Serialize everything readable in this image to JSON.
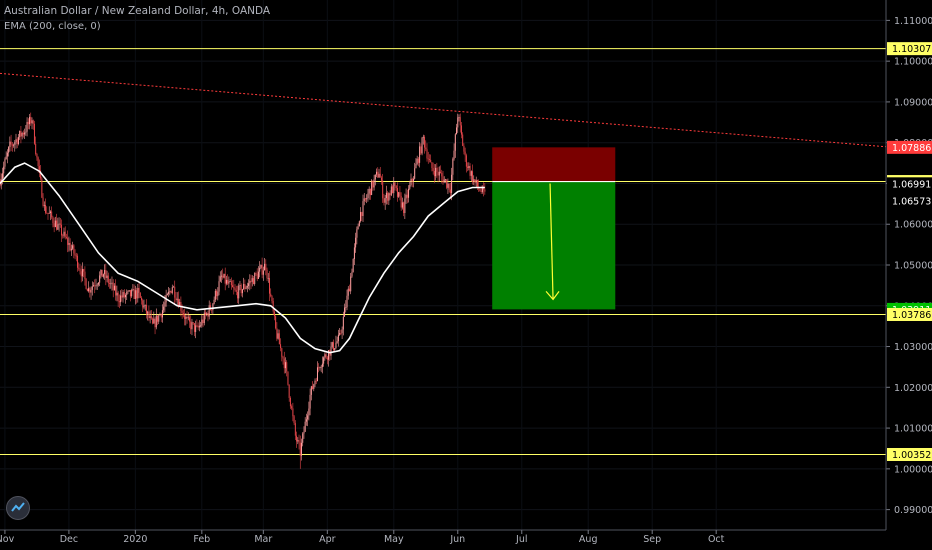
{
  "header": {
    "symbol_line": "Australian Dollar / New Zealand Dollar, 4h, OANDA",
    "indicator_line": "EMA (200, close, 0)"
  },
  "colors": {
    "background": "#000000",
    "candle_up": "#ff9e9e",
    "candle_down": "#e8474b",
    "ema": "#ffffff",
    "level_line": "#ffff66",
    "trendline": "#ff3b3b",
    "stop_zone": "#7a0000",
    "target_zone": "#008000",
    "arrow": "#ffff33",
    "axis_text": "#b2b5be",
    "price_badge_red": "#ff3b3b",
    "price_badge_green": "#00c000"
  },
  "logo_icon": "tradingview-logo-icon",
  "chart_data": {
    "type": "candlestick",
    "title": "Australian Dollar / New Zealand Dollar, 4h, OANDA",
    "ylim": [
      0.985,
      1.115
    ],
    "y_ticks": [
      1.11,
      1.1,
      1.09,
      1.08,
      1.07,
      1.06,
      1.05,
      1.04,
      1.03,
      1.02,
      1.01,
      1.0,
      0.99
    ],
    "y_tick_labels": [
      "1.11000",
      "1.10000",
      "1.09000",
      "1.08000",
      "1.07000",
      "1.06000",
      "1.05000",
      "1.04000",
      "1.03000",
      "1.02000",
      "1.01000",
      "1.00000",
      "0.99000"
    ],
    "x_index_range": [
      0,
      360
    ],
    "x_ticks": [
      {
        "label": "Nov",
        "index": 2
      },
      {
        "label": "Dec",
        "index": 28
      },
      {
        "label": "2020",
        "index": 55
      },
      {
        "label": "Feb",
        "index": 82
      },
      {
        "label": "Mar",
        "index": 107
      },
      {
        "label": "Apr",
        "index": 133
      },
      {
        "label": "May",
        "index": 160
      },
      {
        "label": "Jun",
        "index": 186
      },
      {
        "label": "Jul",
        "index": 212
      },
      {
        "label": "Aug",
        "index": 239
      },
      {
        "label": "Sep",
        "index": 265
      },
      {
        "label": "Oct",
        "index": 291
      }
    ],
    "price_anchors": [
      [
        0,
        1.071
      ],
      [
        4,
        1.079
      ],
      [
        10,
        1.083
      ],
      [
        13,
        1.086
      ],
      [
        15,
        1.076
      ],
      [
        18,
        1.064
      ],
      [
        24,
        1.059
      ],
      [
        30,
        1.053
      ],
      [
        36,
        1.044
      ],
      [
        42,
        1.048
      ],
      [
        48,
        1.042
      ],
      [
        56,
        1.043
      ],
      [
        62,
        1.035
      ],
      [
        66,
        1.039
      ],
      [
        70,
        1.045
      ],
      [
        76,
        1.036
      ],
      [
        80,
        1.034
      ],
      [
        86,
        1.04
      ],
      [
        90,
        1.047
      ],
      [
        96,
        1.043
      ],
      [
        102,
        1.046
      ],
      [
        108,
        1.05
      ],
      [
        112,
        1.034
      ],
      [
        116,
        1.025
      ],
      [
        120,
        1.008
      ],
      [
        122,
        1.004
      ],
      [
        126,
        1.018
      ],
      [
        130,
        1.026
      ],
      [
        134,
        1.029
      ],
      [
        138,
        1.032
      ],
      [
        142,
        1.045
      ],
      [
        146,
        1.062
      ],
      [
        150,
        1.068
      ],
      [
        154,
        1.073
      ],
      [
        156,
        1.066
      ],
      [
        160,
        1.069
      ],
      [
        164,
        1.064
      ],
      [
        168,
        1.072
      ],
      [
        172,
        1.081
      ],
      [
        175,
        1.074
      ],
      [
        179,
        1.072
      ],
      [
        183,
        1.069
      ],
      [
        186,
        1.087
      ],
      [
        189,
        1.076
      ],
      [
        193,
        1.07
      ],
      [
        197,
        1.067
      ]
    ],
    "price_low_extremes": [
      [
        122,
        1.0
      ],
      [
        113,
        1.036
      ]
    ],
    "ema_200": [
      [
        0,
        1.07
      ],
      [
        6,
        1.074
      ],
      [
        10,
        1.075
      ],
      [
        16,
        1.073
      ],
      [
        24,
        1.067
      ],
      [
        32,
        1.06
      ],
      [
        40,
        1.053
      ],
      [
        48,
        1.048
      ],
      [
        56,
        1.046
      ],
      [
        64,
        1.043
      ],
      [
        72,
        1.04
      ],
      [
        80,
        1.039
      ],
      [
        88,
        1.0395
      ],
      [
        96,
        1.04
      ],
      [
        104,
        1.0405
      ],
      [
        110,
        1.04
      ],
      [
        116,
        1.037
      ],
      [
        122,
        1.032
      ],
      [
        128,
        1.0295
      ],
      [
        134,
        1.0285
      ],
      [
        138,
        1.029
      ],
      [
        142,
        1.032
      ],
      [
        146,
        1.037
      ],
      [
        150,
        1.042
      ],
      [
        156,
        1.048
      ],
      [
        162,
        1.053
      ],
      [
        168,
        1.057
      ],
      [
        174,
        1.062
      ],
      [
        180,
        1.065
      ],
      [
        186,
        1.068
      ],
      [
        192,
        1.069
      ],
      [
        197,
        1.069
      ]
    ],
    "horizontal_levels": [
      1.10307,
      1.07047,
      1.03786,
      1.00352
    ],
    "trendline": {
      "start": [
        0,
        1.097
      ],
      "end": [
        360,
        1.079
      ]
    },
    "position": {
      "direction": "short",
      "x_range": [
        200,
        250
      ],
      "entry": 1.07047,
      "stop": 1.07886,
      "target": 1.03911
    },
    "price_labels": [
      {
        "value": 1.10307,
        "text": "1.10307",
        "style": "yellow"
      },
      {
        "value": 1.07886,
        "text": "1.07886",
        "style": "red"
      },
      {
        "value": 1.07047,
        "text": "1.07047",
        "style": "yellow"
      },
      {
        "value": 1.06991,
        "text": "1.06991",
        "style": "plain"
      },
      {
        "value": 1.06573,
        "text": "1.06573",
        "style": "plain"
      },
      {
        "value": 1.03911,
        "text": "1.03911",
        "style": "green"
      },
      {
        "value": 1.03786,
        "text": "1.03786",
        "style": "yellow"
      },
      {
        "value": 1.00352,
        "text": "1.00352",
        "style": "yellow"
      }
    ]
  }
}
